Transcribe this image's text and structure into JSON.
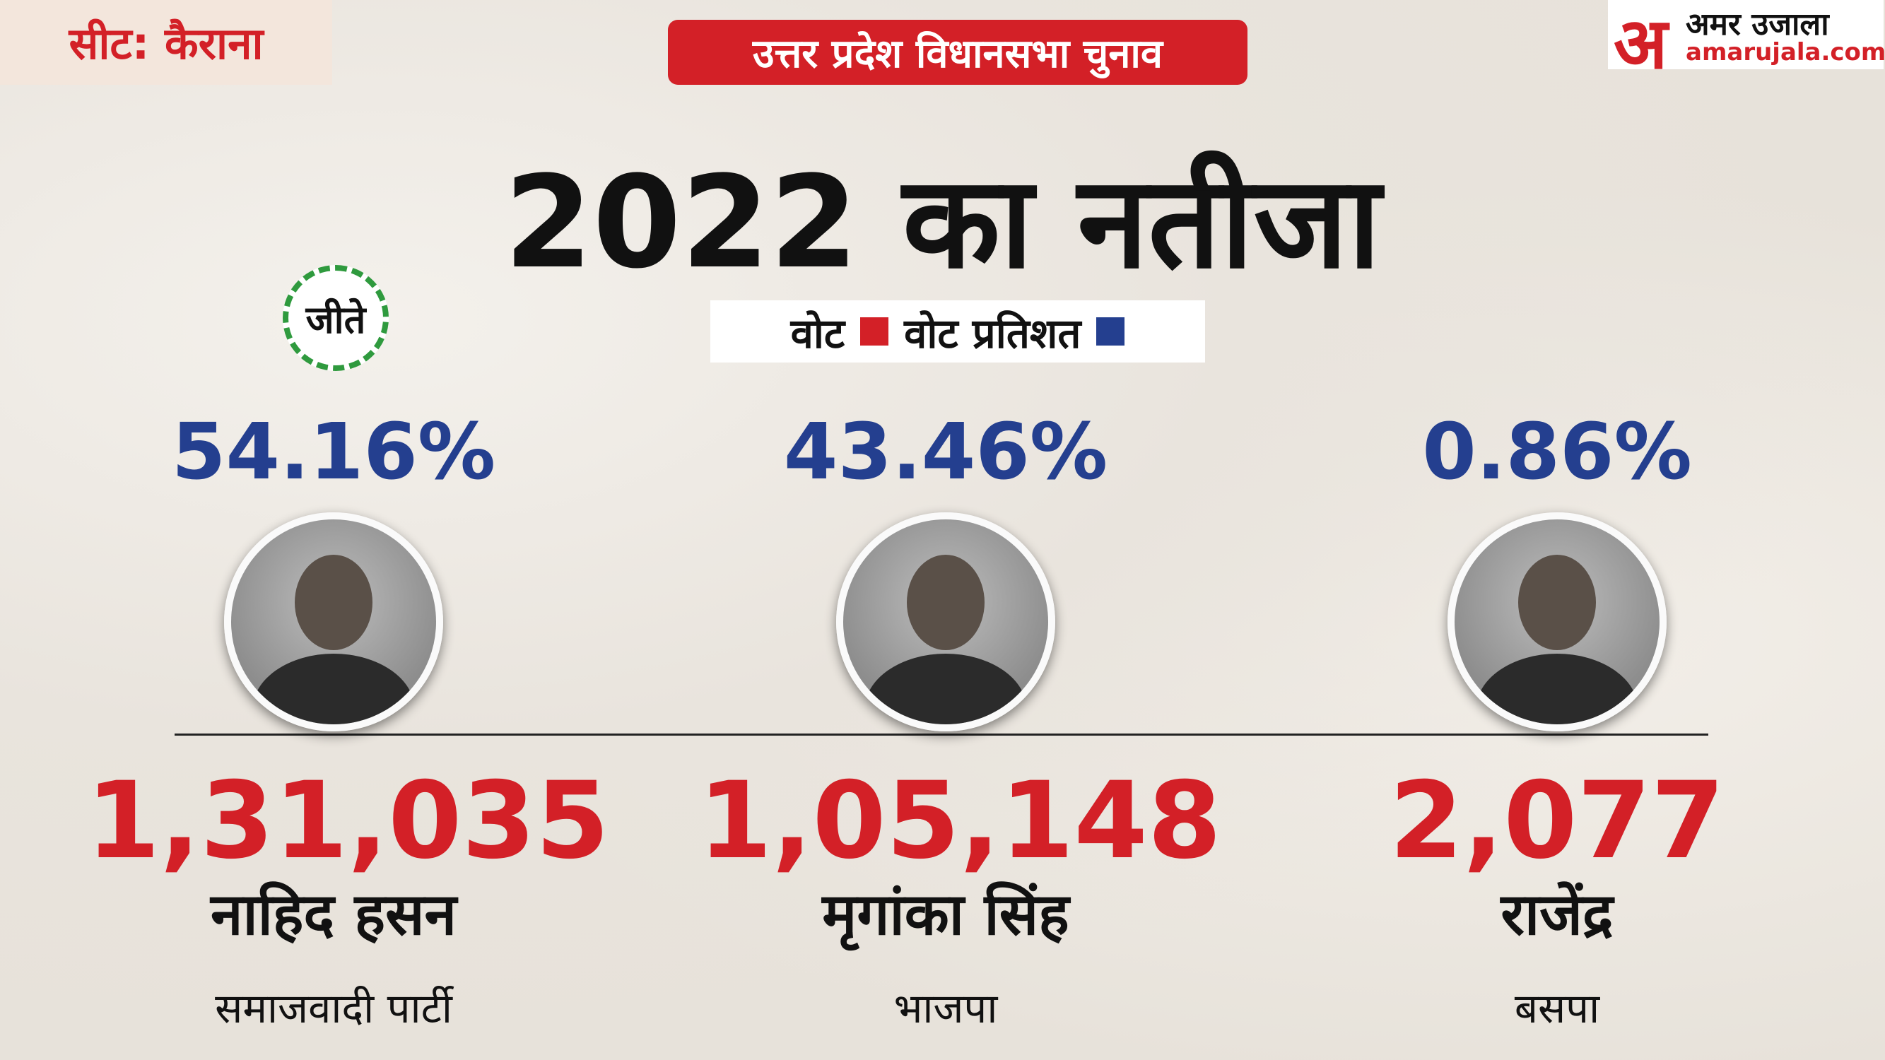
{
  "header": {
    "seat": "सीट: कैराना",
    "banner": "उत्तर प्रदेश विधानसभा चुनाव",
    "title": "2022 का नतीजा",
    "logo_mark": "अ",
    "logo_name": "अमर उजाला",
    "logo_site": "amarujala.com"
  },
  "legend": {
    "votes": "वोट",
    "percent": "वोट प्रतिशत"
  },
  "winner_badge": "जीते",
  "candidates": [
    {
      "percent": "54.16%",
      "votes": "1,31,035",
      "name": "नाहिद हसन",
      "party": "समाजवादी पार्टी"
    },
    {
      "percent": "43.46%",
      "votes": "1,05,148",
      "name": "मृगांका सिंह",
      "party": "भाजपा"
    },
    {
      "percent": "0.86%",
      "votes": "2,077",
      "name": "राजेंद्र",
      "party": "बसपा"
    }
  ]
}
